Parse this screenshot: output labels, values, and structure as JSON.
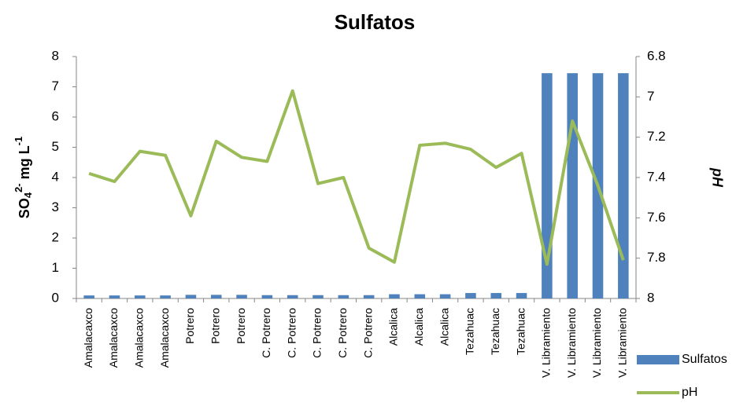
{
  "chart_data": {
    "type": "bar_line",
    "title": "Sulfatos",
    "y_label_parts": [
      "SO",
      "4",
      "2-",
      " mg  L",
      "-1"
    ],
    "y2_label": "pH",
    "categories": [
      "Amalacaxco",
      "Amalacaxco",
      "Amalacaxco",
      "Amalacaxco",
      "Potrero",
      "Potrero",
      "Potrero",
      "C. Potrero",
      "C. Potrero",
      "C. Potrero",
      "C. Potrero",
      "C. Potrero",
      "Alcalica",
      "Alcalica",
      "Alcalica",
      "Tezahuac",
      "Tezahuac",
      "Tezahuac",
      "V. Libramiento",
      "V. Libramiento",
      "V. Libramiento",
      "V. Libramiento"
    ],
    "series": [
      {
        "name": "Sulfatos",
        "kind": "bar",
        "color": "#4f81bd",
        "values": [
          0.1,
          0.1,
          0.1,
          0.1,
          0.12,
          0.12,
          0.12,
          0.11,
          0.11,
          0.11,
          0.11,
          0.11,
          0.14,
          0.14,
          0.14,
          0.18,
          0.18,
          0.18,
          7.45,
          7.45,
          7.45,
          7.45
        ]
      },
      {
        "name": "pH",
        "kind": "line",
        "axis": "y2",
        "color": "#9bbb59",
        "values": [
          7.38,
          7.42,
          7.27,
          7.29,
          7.59,
          7.22,
          7.3,
          7.32,
          6.97,
          7.43,
          7.4,
          7.75,
          7.82,
          7.24,
          7.23,
          7.26,
          7.35,
          7.28,
          7.83,
          7.12,
          7.44,
          7.81
        ]
      }
    ],
    "ylim": [
      0,
      8
    ],
    "yticks": [
      0,
      1,
      2,
      3,
      4,
      5,
      6,
      7,
      8
    ],
    "y2lim": [
      6.8,
      8
    ],
    "y2ticks": [
      6.8,
      7,
      7.2,
      7.4,
      7.6,
      7.8,
      8
    ],
    "y2_inverted": true,
    "legend": "bottom-right"
  }
}
